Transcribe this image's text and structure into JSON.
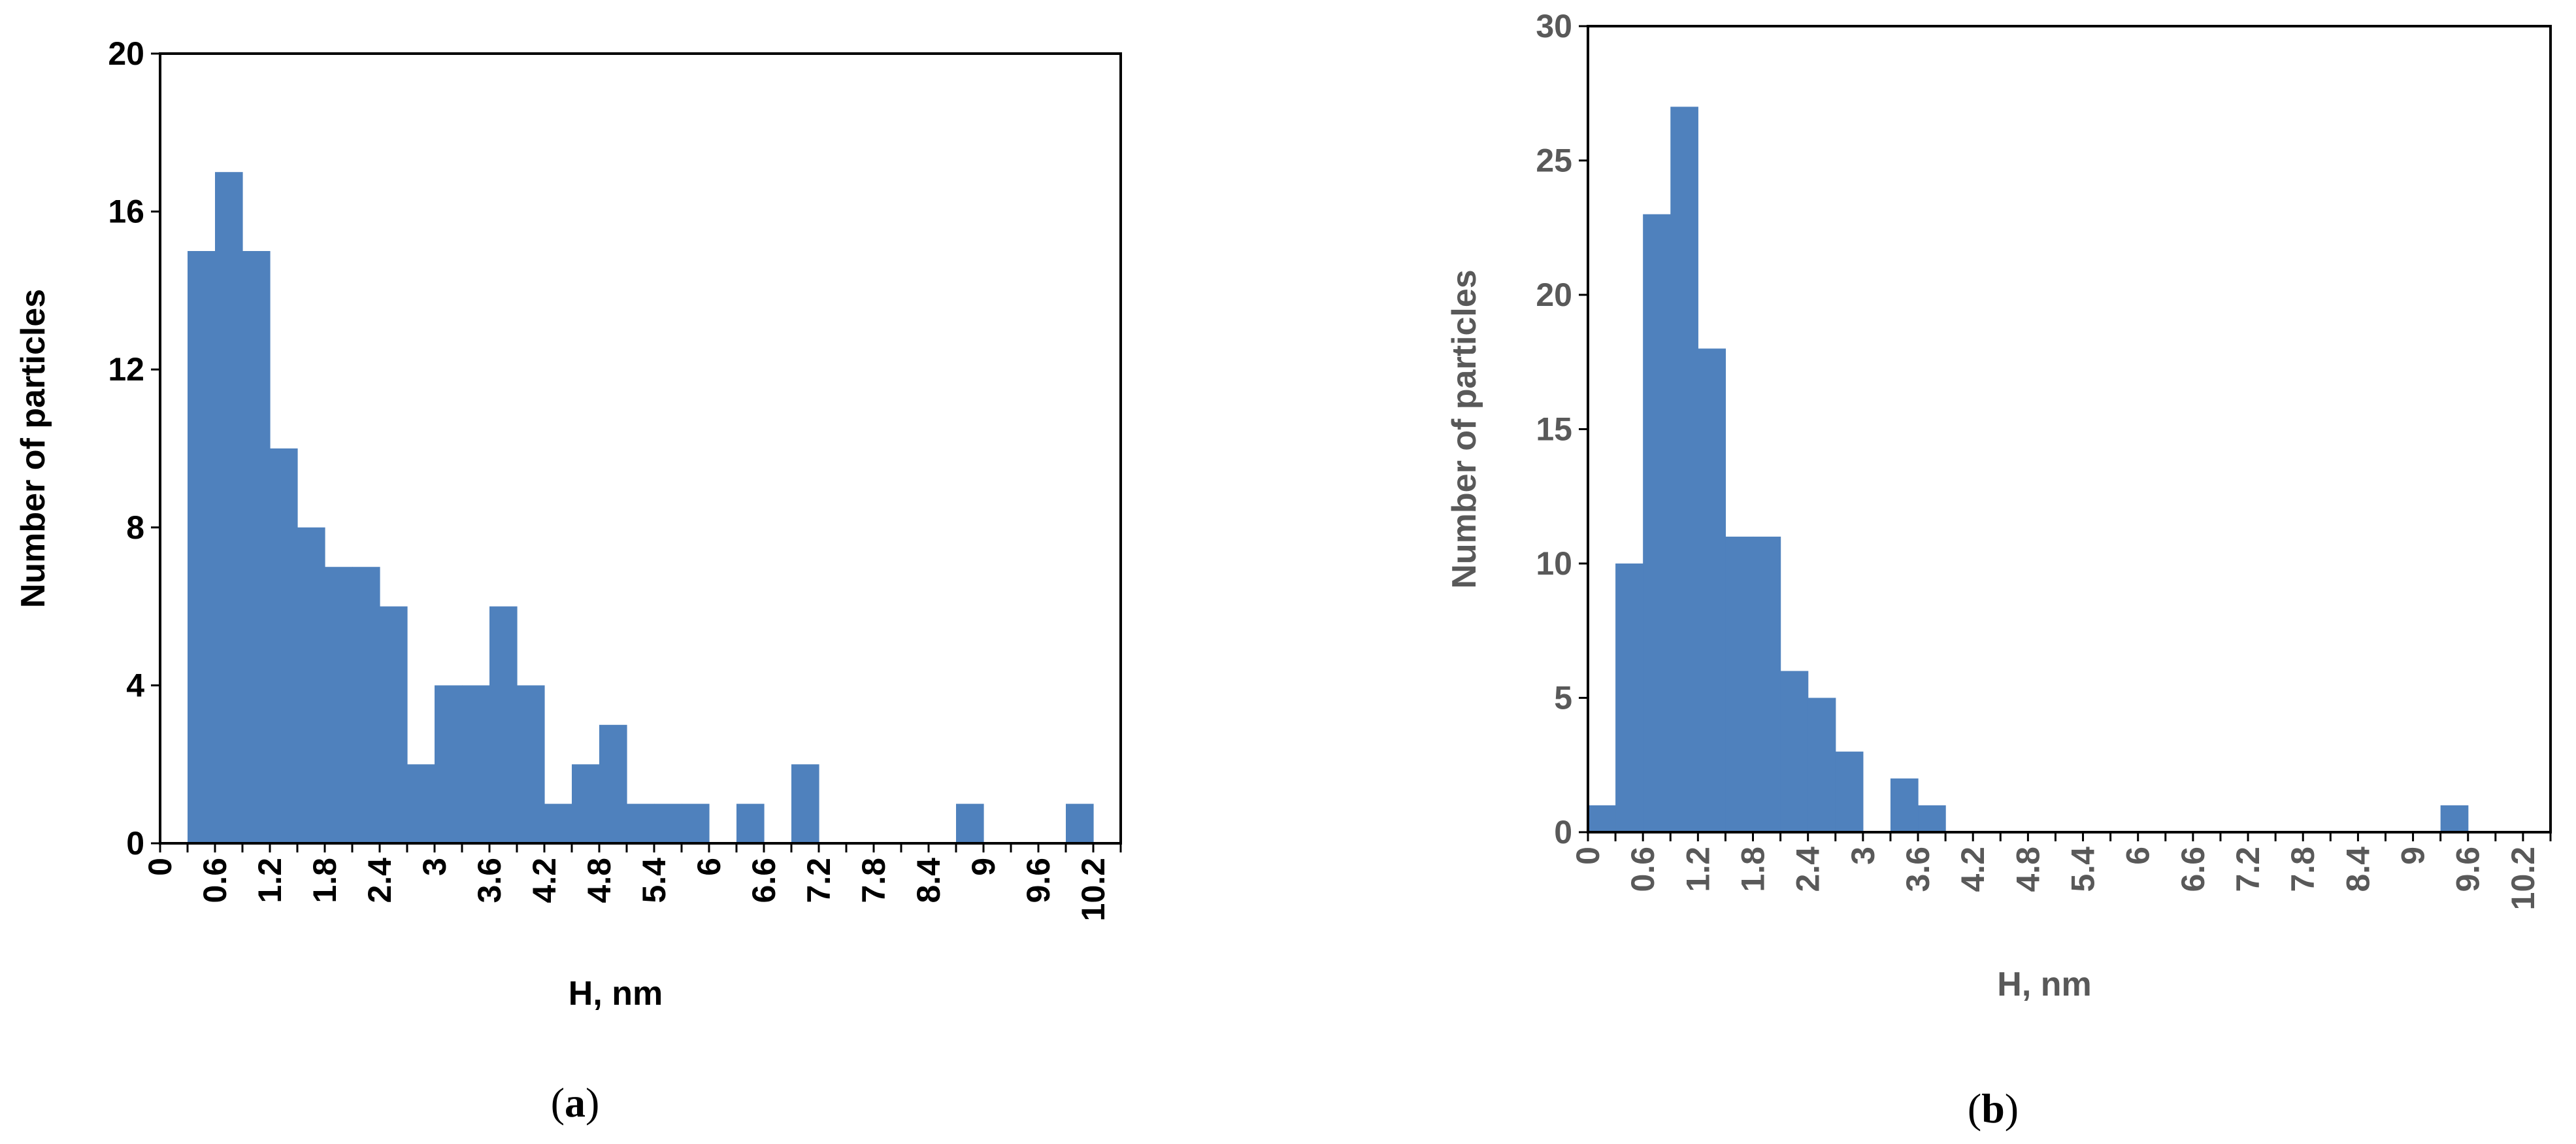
{
  "colors": {
    "bar": "#4f81bd",
    "axis": "#000000",
    "text_a": "#000000",
    "text_b": "#595959"
  },
  "chart_data": [
    {
      "type": "bar",
      "panel": "(a)",
      "caption": {
        "open": "(",
        "letter": "a",
        "close": ")"
      },
      "xlabel": "H, nm",
      "ylabel": "Number of particles",
      "ylim": [
        0,
        20
      ],
      "yticks": [
        "0",
        "4",
        "8",
        "12",
        "16",
        "20"
      ],
      "xtick_labels": [
        "0",
        "0.6",
        "1.2",
        "1.8",
        "2.4",
        "3",
        "3.6",
        "4.2",
        "4.8",
        "5.4",
        "6",
        "6.6",
        "7.2",
        "7.8",
        "8.4",
        "9",
        "9.6",
        "10.2"
      ],
      "categories": [
        "0",
        "0.3",
        "0.6",
        "0.9",
        "1.2",
        "1.5",
        "1.8",
        "2.1",
        "2.4",
        "2.7",
        "3",
        "3.3",
        "3.6",
        "3.9",
        "4.2",
        "4.5",
        "4.8",
        "5.1",
        "5.4",
        "5.7",
        "6",
        "6.3",
        "6.6",
        "6.9",
        "7.2",
        "7.5",
        "7.8",
        "8.1",
        "8.4",
        "8.7",
        "9",
        "9.3",
        "9.6",
        "9.9",
        "10.2"
      ],
      "values": [
        0,
        15,
        17,
        15,
        10,
        8,
        7,
        7,
        6,
        2,
        4,
        4,
        6,
        4,
        1,
        2,
        3,
        1,
        1,
        1,
        0,
        1,
        0,
        2,
        0,
        0,
        0,
        0,
        0,
        1,
        0,
        0,
        0,
        1,
        0
      ]
    },
    {
      "type": "bar",
      "panel": "(b)",
      "caption": {
        "open": "(",
        "letter": "b",
        "close": ")"
      },
      "xlabel": "H, nm",
      "ylabel": "Number of particles",
      "ylim": [
        0,
        30
      ],
      "yticks": [
        "0",
        "5",
        "10",
        "15",
        "20",
        "25",
        "30"
      ],
      "xtick_labels": [
        "0",
        "0.6",
        "1.2",
        "1.8",
        "2.4",
        "3",
        "3.6",
        "4.2",
        "4.8",
        "5.4",
        "6",
        "6.6",
        "7.2",
        "7.8",
        "8.4",
        "9",
        "9.6",
        "10.2"
      ],
      "categories": [
        "0",
        "0.3",
        "0.6",
        "0.9",
        "1.2",
        "1.5",
        "1.8",
        "2.1",
        "2.4",
        "2.7",
        "3",
        "3.3",
        "3.6",
        "3.9",
        "4.2",
        "4.5",
        "4.8",
        "5.1",
        "5.4",
        "5.7",
        "6",
        "6.3",
        "6.6",
        "6.9",
        "7.2",
        "7.5",
        "7.8",
        "8.1",
        "8.4",
        "8.7",
        "9",
        "9.3",
        "9.6",
        "9.9",
        "10.2"
      ],
      "values": [
        1,
        10,
        23,
        27,
        18,
        11,
        11,
        6,
        5,
        3,
        0,
        2,
        1,
        0,
        0,
        0,
        0,
        0,
        0,
        0,
        0,
        0,
        0,
        0,
        0,
        0,
        0,
        0,
        0,
        0,
        0,
        1,
        0,
        0,
        0
      ]
    }
  ]
}
